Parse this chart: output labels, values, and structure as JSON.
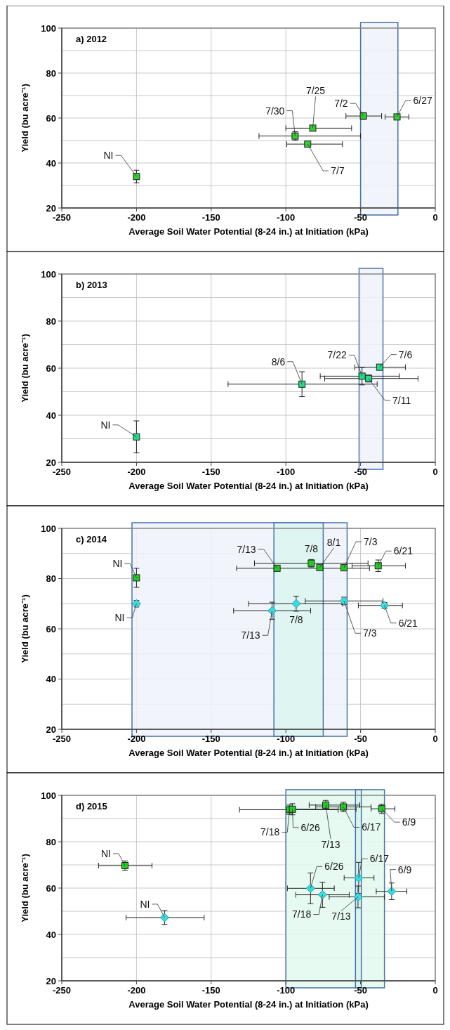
{
  "chart_data": [
    {
      "type": "scatter",
      "title": "a) 2012",
      "xlabel": "Average Soil Water Potential (8-24 in.) at Initiation (kPa)",
      "ylabel": "Yield (bu acre⁻¹)",
      "xlim": [
        -250,
        0
      ],
      "xticks": [
        -250,
        -200,
        -150,
        -100,
        -50,
        0
      ],
      "ylim": [
        20,
        100
      ],
      "yticks": [
        20,
        {
          "value": 30,
          "label": null
        },
        40,
        {
          "value": 50,
          "label": null
        },
        60,
        {
          "value": 70,
          "label": null
        },
        80,
        {
          "value": 90,
          "label": null
        },
        100
      ],
      "grid": true,
      "bands": [
        {
          "axis": "x",
          "from": -50,
          "to": -25,
          "color": "#eef2f9"
        }
      ],
      "series": [
        {
          "color": "#33cc33",
          "marker": "square",
          "x": [
            -200,
            -93.8,
            -82,
            -85.4,
            -48.1,
            -25.6
          ],
          "values": [
            34,
            52,
            55.5,
            48.4,
            60.9,
            60.5
          ],
          "errors": [
            2.8,
            1.9,
            null,
            null,
            1.5,
            null
          ],
          "xerrors": [
            null,
            [
              -118,
              -50
            ],
            [
              -100,
              -56
            ],
            [
              -99.4,
              -62.1
            ],
            [
              -59.8,
              -35.9
            ],
            [
              -33.6,
              -17.7
            ]
          ]
        }
      ],
      "annotations": [
        {
          "text": "NI",
          "x": -200,
          "y": 34
        },
        {
          "text": "7/30",
          "x": -93.8,
          "y": 52
        },
        {
          "text": "7/25",
          "x": -82,
          "y": 55.5
        },
        {
          "text": "7/7",
          "x": -85.4,
          "y": 48.4
        },
        {
          "text": "7/2",
          "x": -48.1,
          "y": 60.9
        },
        {
          "text": "6/27",
          "x": -25.6,
          "y": 60.5
        }
      ]
    },
    {
      "type": "scatter",
      "title": "b) 2013",
      "xlabel": "Average Soil Water Potential (8-24 in.) at Initiation (kPa)",
      "ylabel": "Yield (bu acre⁻¹)",
      "xlim": [
        -250,
        0
      ],
      "xticks": [
        -250,
        -200,
        -150,
        -100,
        -50,
        0
      ],
      "ylim": [
        20,
        100
      ],
      "yticks": [
        20,
        {
          "value": 30,
          "label": null
        },
        40,
        {
          "value": 50,
          "label": null
        },
        60,
        {
          "value": 70,
          "label": null
        },
        80,
        {
          "value": 90,
          "label": null
        },
        100
      ],
      "grid": true,
      "bands": [
        {
          "axis": "x",
          "from": -51,
          "to": -35,
          "color": "#eef2f9"
        }
      ],
      "series": [
        {
          "color": "#22dd88",
          "marker": "square",
          "x": [
            -200,
            -89.2,
            -49,
            -44.6,
            -37.2
          ],
          "values": [
            30.8,
            53.2,
            56.6,
            55.6,
            60.4
          ],
          "errors": [
            6.8,
            5.3,
            3.7,
            1.5,
            null
          ],
          "xerrors": [
            null,
            [
              -138.7,
              -38.9
            ],
            [
              -77,
              -24
            ],
            [
              -74,
              -11.5
            ],
            [
              -53.9,
              -20
            ]
          ]
        }
      ],
      "annotations": [
        {
          "text": "NI",
          "x": -200,
          "y": 30.8
        },
        {
          "text": "8/6",
          "x": -89.2,
          "y": 53.2
        },
        {
          "text": "7/22",
          "x": -49,
          "y": 56.6
        },
        {
          "text": "7/6",
          "x": -37.2,
          "y": 60.4
        },
        {
          "text": "7/11",
          "x": -44.6,
          "y": 55.6
        }
      ]
    },
    {
      "type": "scatter",
      "title": "c) 2014",
      "xlabel": "Average Soil Water Potential (8-24 in.) at Initiation (kPa)",
      "ylabel": "Yield (bu acre⁻¹)",
      "xlim": [
        -250,
        0
      ],
      "xticks": [
        -250,
        -200,
        -150,
        -100,
        -50,
        0
      ],
      "ylim": [
        20,
        100
      ],
      "yticks": [
        20,
        {
          "value": 30,
          "label": null
        },
        40,
        {
          "value": 50,
          "label": null
        },
        60,
        {
          "value": 70,
          "label": null
        },
        80,
        {
          "value": 90,
          "label": null
        },
        100
      ],
      "grid": true,
      "bands": [
        {
          "axis": "x",
          "from": -203,
          "to": -59,
          "color": "#eef3fa"
        },
        {
          "axis": "x",
          "from": -108,
          "to": -75,
          "color": "#dcf4f0"
        }
      ],
      "series": [
        {
          "color": "#33e0e0",
          "marker": "diamond",
          "x": [
            -200,
            -109.2,
            -93.1,
            -61.1,
            -34
          ],
          "values": [
            70,
            67.2,
            70,
            71.1,
            69.3
          ],
          "errors": [
            1.3,
            3.4,
            3,
            1.5,
            1.2
          ],
          "xerrors": [
            null,
            [
              -135,
              -83.4
            ],
            [
              -125,
              -62
            ],
            [
              -87,
              -35
            ],
            [
              -51.5,
              -22
            ]
          ]
        },
        {
          "color": "#22cc22",
          "marker": "square",
          "x": [
            -200,
            -105.9,
            -83,
            -77.3,
            -61.1,
            -38.2
          ],
          "values": [
            80.3,
            84.1,
            86.1,
            84.4,
            84.3,
            85.1
          ],
          "errors": [
            3.8,
            null,
            1.5,
            null,
            null,
            2.3
          ],
          "xerrors": [
            null,
            [
              -133,
              -44
            ],
            [
              -121,
              -45
            ],
            null,
            null,
            [
              -55.7,
              -20
            ]
          ]
        }
      ],
      "annotations": [
        {
          "text": "NI",
          "x": -200,
          "y": 80.3
        },
        {
          "text": "NI",
          "x": -200,
          "y": 70
        },
        {
          "text": "7/13",
          "x": -105.9,
          "y": 84.1
        },
        {
          "text": "7/8",
          "x": -83,
          "y": 86.1
        },
        {
          "text": "8/1",
          "x": -77.3,
          "y": 84.4
        },
        {
          "text": "7/3",
          "x": -61.1,
          "y": 84.3
        },
        {
          "text": "6/21",
          "x": -38.2,
          "y": 85.1
        },
        {
          "text": "7/13",
          "x": -109.2,
          "y": 67.2
        },
        {
          "text": "7/8",
          "x": -93.1,
          "y": 70
        },
        {
          "text": "7/3",
          "x": -61.1,
          "y": 71.1
        },
        {
          "text": "6/21",
          "x": -34,
          "y": 69.3
        }
      ]
    },
    {
      "type": "scatter",
      "title": "d) 2015",
      "xlabel": "Average Soil Water Potential (8-24 in.) at Initiation  (kPa)",
      "ylabel": "Yield (bu acre⁻¹)",
      "xlim": [
        -250,
        0
      ],
      "xticks": [
        -250,
        -200,
        -150,
        -100,
        -50,
        0
      ],
      "ylim": [
        20,
        100
      ],
      "yticks": [
        20,
        {
          "value": 30,
          "label": null
        },
        40,
        {
          "value": 50,
          "label": null
        },
        60,
        {
          "value": 70,
          "label": null
        },
        80,
        {
          "value": 90,
          "label": null
        },
        100
      ],
      "grid": true,
      "bands": [
        {
          "axis": "x",
          "from": -100,
          "to": -34,
          "color": "#e3f9ef"
        },
        {
          "axis": "x",
          "from": -53.4,
          "to": -49.5,
          "color": "#d4f2ee"
        }
      ],
      "series": [
        {
          "color": "#33e0e0",
          "marker": "diamond",
          "x": [
            -181.2,
            -83.5,
            -75.5,
            -51.3,
            -51.7,
            -29.2
          ],
          "values": [
            47.3,
            59.9,
            57.1,
            64.4,
            56.2,
            58.6
          ],
          "errors": [
            3,
            6.6,
            5.4,
            6.7,
            4.7,
            3.6
          ],
          "xerrors": [
            [
              -207,
              -154.7
            ],
            [
              -99,
              -67.6
            ],
            [
              -93.4,
              -57.6
            ],
            [
              -61,
              -41
            ],
            [
              -71,
              -34
            ],
            [
              -39.5,
              -19
            ]
          ]
        },
        {
          "color": "#22cc22",
          "marker": "square",
          "x": [
            -207.7,
            -97.6,
            -95.6,
            -73.3,
            -61.5,
            -35.8
          ],
          "values": [
            69.7,
            93.8,
            94,
            95.8,
            95,
            94.2
          ],
          "errors": [
            2,
            2,
            2.4,
            2,
            2,
            2
          ],
          "xerrors": [
            [
              -225.4,
              -189.6
            ],
            [
              -131,
              -65
            ],
            [
              -98,
              -53
            ],
            [
              -84.4,
              -50.5
            ],
            [
              -80,
              -43
            ],
            [
              -42.9,
              -27
            ]
          ]
        }
      ],
      "annotations": [
        {
          "text": "NI",
          "x": -207.7,
          "y": 69.7
        },
        {
          "text": "NI",
          "x": -181.2,
          "y": 47.3
        },
        {
          "text": "7/18",
          "x": -97.6,
          "y": 93.8
        },
        {
          "text": "6/26",
          "x": -95.6,
          "y": 94
        },
        {
          "text": "7/13",
          "x": -73.3,
          "y": 95.8
        },
        {
          "text": "6/17",
          "x": -61.5,
          "y": 95
        },
        {
          "text": "6/9",
          "x": -35.8,
          "y": 94.2
        },
        {
          "text": "6/26",
          "x": -83.5,
          "y": 59.9
        },
        {
          "text": "7/18",
          "x": -75.5,
          "y": 57.1
        },
        {
          "text": "6/17",
          "x": -51.3,
          "y": 64.4
        },
        {
          "text": "7/13",
          "x": -51.7,
          "y": 56.2
        },
        {
          "text": "6/9",
          "x": -29.2,
          "y": 58.6
        }
      ]
    }
  ]
}
